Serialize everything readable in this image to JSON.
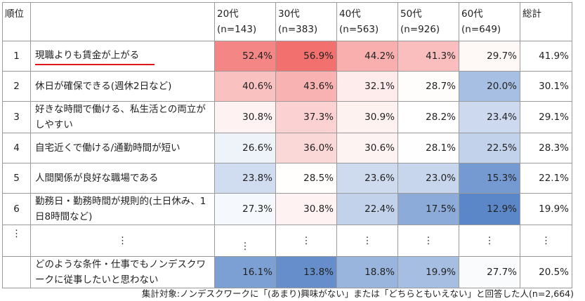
{
  "chart_data": {
    "type": "table",
    "header": {
      "rank": "順位",
      "columns": [
        {
          "age": "20代",
          "n": "(n=143)"
        },
        {
          "age": "30代",
          "n": "(n=383)"
        },
        {
          "age": "40代",
          "n": "(n=563)"
        },
        {
          "age": "50代",
          "n": "(n=926)"
        },
        {
          "age": "60代",
          "n": "(n=649)"
        }
      ],
      "total": "総計"
    },
    "rows": [
      {
        "rank": "1",
        "item": "現職よりも賃金が上がる",
        "values": [
          52.4,
          56.9,
          44.2,
          41.3,
          29.7
        ],
        "total": 41.9
      },
      {
        "rank": "2",
        "item": "休日が確保できる(週休2日など)",
        "values": [
          40.6,
          43.6,
          32.1,
          28.7,
          20.0
        ],
        "total": 30.1
      },
      {
        "rank": "3",
        "item": "好きな時間で働ける、私生活との両立がしやすい",
        "values": [
          30.8,
          37.3,
          30.9,
          28.2,
          23.4
        ],
        "total": 29.1
      },
      {
        "rank": "4",
        "item": "自宅近くで働ける/通勤時間が短い",
        "values": [
          26.6,
          36.0,
          30.6,
          28.1,
          22.5
        ],
        "total": 28.3
      },
      {
        "rank": "5",
        "item": "人間関係が良好な職場である",
        "values": [
          23.8,
          28.5,
          23.6,
          23.0,
          15.3
        ],
        "total": 22.1
      },
      {
        "rank": "6",
        "item": "勤務日・勤務時間が規則的(土日休み、1日8時間など)",
        "values": [
          27.3,
          30.8,
          22.4,
          17.5,
          12.9
        ],
        "total": 19.9
      }
    ],
    "ellipsis": "⋮",
    "last_row": {
      "item": "どのような条件・仕事でもノンデスクワークに従事したいと思わない",
      "values": [
        16.1,
        13.8,
        18.8,
        19.9,
        27.7
      ],
      "total": 20.5
    },
    "color_scale": {
      "high": "#f2706e",
      "mid": "#ffffff",
      "low": "#5b87c8",
      "range": [
        12.9,
        56.9
      ]
    }
  },
  "footnote": "集計対象:ノンデスクワークに「(あまり)興味がない」または「どちらともいえない」と回答した人(n=2,664)"
}
